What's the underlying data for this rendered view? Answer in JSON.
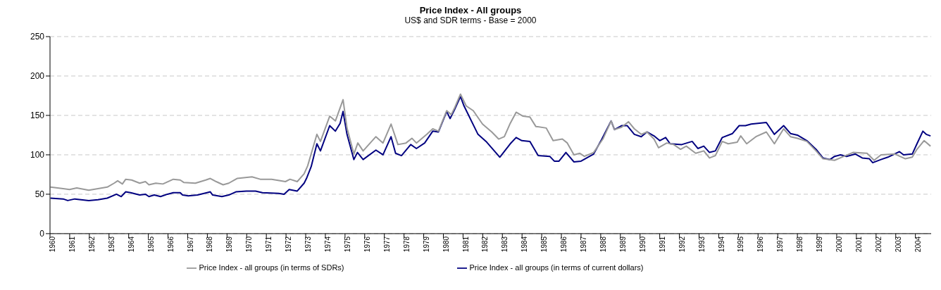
{
  "chart_data": {
    "type": "line",
    "title": "Price Index - All groups",
    "subtitle": "US$ and SDR terms - Base = 2000",
    "xlim": [
      1960,
      2004.8
    ],
    "xticks": [
      1960,
      1961,
      1962,
      1963,
      1964,
      1965,
      1966,
      1967,
      1968,
      1969,
      1970,
      1971,
      1972,
      1973,
      1974,
      1975,
      1976,
      1977,
      1978,
      1979,
      1980,
      1981,
      1982,
      1983,
      1984,
      1985,
      1986,
      1987,
      1988,
      1989,
      1990,
      1991,
      1992,
      1993,
      1994,
      1995,
      1996,
      1997,
      1998,
      1999,
      2000,
      2001,
      2002,
      2003,
      2004
    ],
    "ylim": [
      0,
      250
    ],
    "yticks": [
      0,
      50,
      100,
      150,
      200,
      250
    ],
    "grid": "y",
    "legend": "bottom",
    "series": [
      {
        "name": "Price Index - all groups (in terms of current dollars)",
        "color": "#000080",
        "x": [
          1960.02,
          1960.67,
          1960.9,
          1961.26,
          1961.97,
          1962.44,
          1962.91,
          1963.38,
          1963.62,
          1963.85,
          1964.1,
          1964.56,
          1964.85,
          1965.03,
          1965.3,
          1965.62,
          1965.97,
          1966.27,
          1966.62,
          1966.74,
          1967.03,
          1967.5,
          1967.98,
          1968.15,
          1968.27,
          1968.74,
          1969.09,
          1969.45,
          1969.98,
          1970.45,
          1970.8,
          1971.63,
          1971.9,
          1972.16,
          1972.57,
          1972.92,
          1973.04,
          1973.28,
          1973.57,
          1973.75,
          1974.22,
          1974.51,
          1974.75,
          1974.9,
          1975.1,
          1975.45,
          1975.63,
          1975.92,
          1976.57,
          1976.93,
          1977.34,
          1977.57,
          1977.87,
          1978.34,
          1978.63,
          1979.05,
          1979.46,
          1979.75,
          1980.17,
          1980.34,
          1980.58,
          1980.87,
          1981.05,
          1981.76,
          1982.17,
          1982.87,
          1983.4,
          1983.7,
          1983.99,
          1984.4,
          1984.82,
          1985.41,
          1985.64,
          1985.88,
          1986.23,
          1986.64,
          1987.0,
          1987.64,
          1988.06,
          1988.53,
          1988.7,
          1989.06,
          1989.35,
          1989.71,
          1990.06,
          1990.35,
          1990.71,
          1991.0,
          1991.3,
          1991.53,
          1992.12,
          1992.65,
          1992.94,
          1993.24,
          1993.53,
          1993.83,
          1994.18,
          1994.7,
          1995.04,
          1995.36,
          1995.65,
          1996.42,
          1996.83,
          1997.3,
          1997.65,
          1998.0,
          1998.48,
          1998.95,
          1999.3,
          1999.66,
          1999.89,
          2000.19,
          2000.5,
          2000.95,
          2001.3,
          2001.66,
          2001.83,
          2002.25,
          2002.6,
          2003.19,
          2003.4,
          2003.84,
          2004.08,
          2004.38,
          2004.55,
          2004.77
        ],
        "values": [
          45,
          44,
          42,
          44,
          42,
          43,
          45,
          50,
          47,
          53,
          52,
          49,
          50,
          47,
          49,
          47,
          50,
          52,
          52,
          49,
          48,
          49,
          52,
          53,
          49,
          47,
          49,
          53,
          54,
          54,
          52,
          51,
          50,
          56,
          54,
          64,
          70,
          85,
          114,
          105,
          137,
          130,
          140,
          155,
          126,
          94,
          103,
          94,
          106,
          100,
          123,
          102,
          99,
          113,
          108,
          115,
          130,
          129,
          155,
          146,
          158,
          174,
          162,
          126,
          117,
          97,
          114,
          122,
          118,
          117,
          99,
          98,
          92,
          92,
          103,
          91,
          92,
          101,
          120,
          143,
          132,
          137,
          137,
          126,
          123,
          129,
          124,
          118,
          122,
          114,
          113,
          117,
          108,
          111,
          103,
          105,
          122,
          127,
          137,
          137,
          139,
          141,
          126,
          137,
          127,
          125,
          118,
          107,
          96,
          94,
          98,
          100,
          98,
          101,
          96,
          95,
          90,
          94,
          97,
          104,
          100,
          101,
          114,
          130,
          126,
          124
        ]
      },
      {
        "name": "Price Index - all groups (in terms of SDRs)",
        "color": "#999999",
        "x": [
          1960.02,
          1960.67,
          1960.99,
          1961.36,
          1961.97,
          1962.44,
          1962.91,
          1963.26,
          1963.44,
          1963.68,
          1963.85,
          1964.15,
          1964.56,
          1964.85,
          1965.03,
          1965.38,
          1965.74,
          1966.27,
          1966.62,
          1966.8,
          1967.39,
          1967.92,
          1968.15,
          1968.45,
          1968.8,
          1969.09,
          1969.51,
          1970.27,
          1970.69,
          1971.27,
          1971.97,
          1972.2,
          1972.57,
          1972.92,
          1973.1,
          1973.57,
          1973.75,
          1974.22,
          1974.51,
          1974.9,
          1975.1,
          1975.45,
          1975.65,
          1975.92,
          1976.57,
          1976.93,
          1977.34,
          1977.69,
          1978.1,
          1978.4,
          1978.63,
          1979.16,
          1979.46,
          1979.75,
          1980.17,
          1980.4,
          1980.58,
          1980.87,
          1981.16,
          1981.52,
          1981.99,
          1982.46,
          1982.81,
          1983.1,
          1983.4,
          1983.7,
          1984.05,
          1984.4,
          1984.7,
          1985.23,
          1985.58,
          1986.05,
          1986.3,
          1986.64,
          1986.94,
          1987.17,
          1987.64,
          1988.11,
          1988.53,
          1988.7,
          1989.06,
          1989.41,
          1989.71,
          1990.06,
          1990.35,
          1990.71,
          1990.94,
          1991.36,
          1991.71,
          1992.06,
          1992.35,
          1992.83,
          1993.24,
          1993.53,
          1993.83,
          1994.18,
          1994.48,
          1994.94,
          1995.12,
          1995.42,
          1995.89,
          1996.42,
          1996.83,
          1997.3,
          1997.65,
          1998.0,
          1998.48,
          1998.95,
          1999.3,
          1999.89,
          2000.36,
          2000.83,
          2001.54,
          2001.9,
          2002.25,
          2002.96,
          2003.49,
          2003.84,
          2004.08,
          2004.44,
          2004.77
        ],
        "values": [
          59,
          57,
          56,
          58,
          55,
          57,
          59,
          64,
          67,
          63,
          69,
          68,
          64,
          66,
          62,
          64,
          63,
          69,
          68,
          65,
          64,
          68,
          70,
          66,
          62,
          64,
          70,
          72,
          69,
          69,
          66,
          69,
          66,
          76,
          86,
          126,
          117,
          149,
          143,
          170,
          134,
          101,
          115,
          105,
          123,
          115,
          139,
          113,
          115,
          121,
          115,
          126,
          133,
          130,
          156,
          151,
          160,
          177,
          162,
          156,
          139,
          129,
          120,
          123,
          140,
          154,
          149,
          148,
          136,
          134,
          118,
          120,
          115,
          100,
          102,
          98,
          103,
          120,
          143,
          132,
          135,
          142,
          133,
          126,
          129,
          120,
          109,
          115,
          113,
          107,
          111,
          102,
          105,
          96,
          99,
          117,
          114,
          116,
          124,
          114,
          123,
          129,
          114,
          133,
          123,
          121,
          117,
          105,
          95,
          93,
          98,
          103,
          102,
          93,
          100,
          101,
          95,
          97,
          107,
          118,
          111
        ]
      }
    ]
  }
}
